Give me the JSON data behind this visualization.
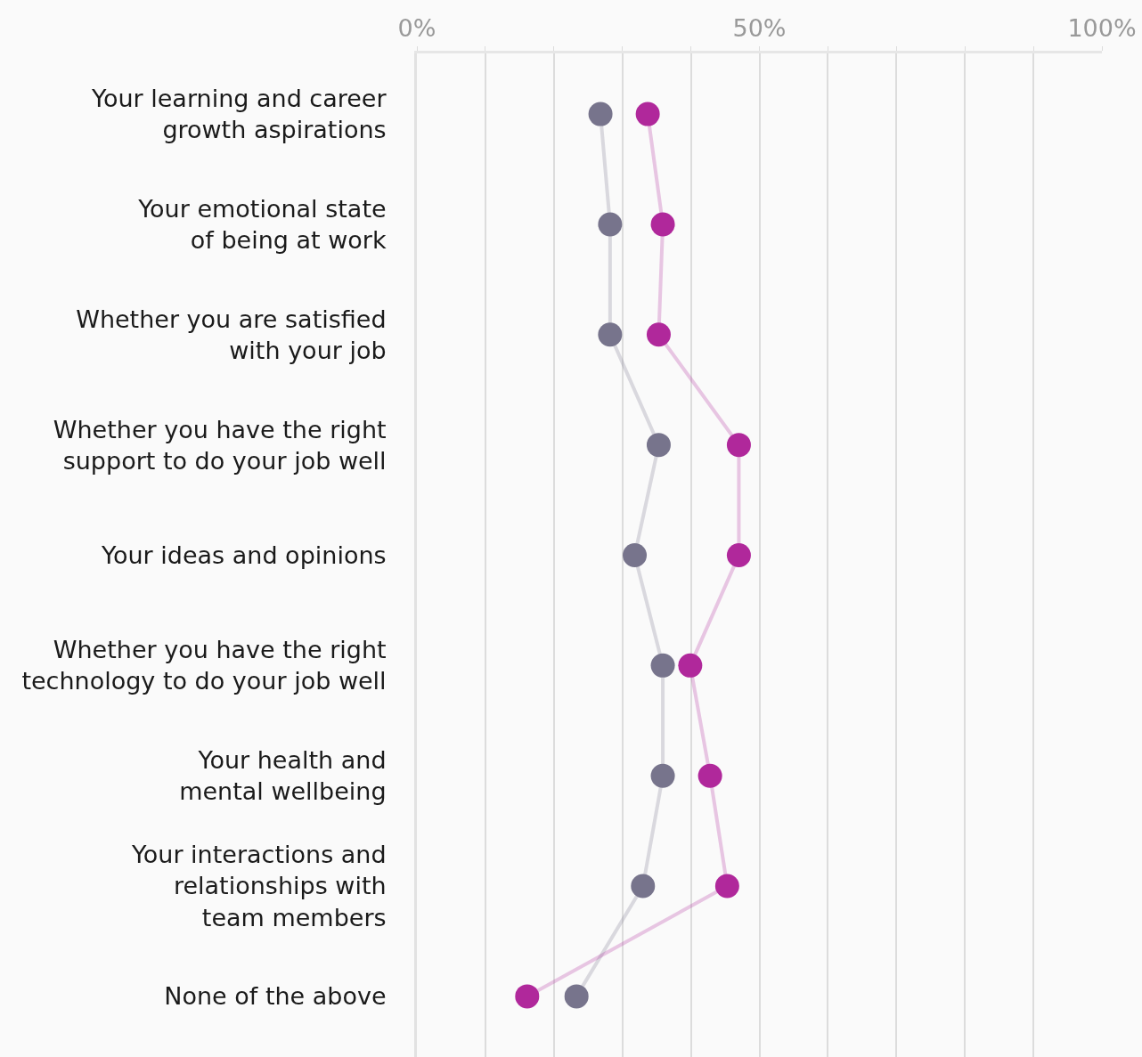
{
  "chart_data": {
    "type": "line",
    "orientation": "horizontal",
    "categories": [
      "Your learning and career\ngrowth aspirations",
      "Your emotional state\nof being at work",
      "Whether you are satisfied\nwith your job",
      "Whether you have the right\nsupport to do your job well",
      "Your ideas and opinions",
      "Whether you have the right\ntechnology to do your job well",
      "Your health and\nmental wellbeing",
      "Your interactions and\nrelationships with\nteam members",
      "None of the above"
    ],
    "series": [
      {
        "color": "#77748c",
        "values": [
          26.8,
          28.2,
          28.2,
          35.3,
          31.8,
          35.9,
          35.9,
          33.0,
          23.3
        ]
      },
      {
        "color": "#b0289b",
        "values": [
          33.7,
          35.9,
          35.3,
          47.0,
          47.0,
          39.9,
          42.8,
          45.3,
          16.1
        ]
      }
    ],
    "xlim": [
      0,
      100
    ],
    "xticks": [
      {
        "value": 0,
        "label": "0%"
      },
      {
        "value": 10,
        "label": null
      },
      {
        "value": 20,
        "label": null
      },
      {
        "value": 30,
        "label": null
      },
      {
        "value": 40,
        "label": null
      },
      {
        "value": 50,
        "label": "50%"
      },
      {
        "value": 60,
        "label": null
      },
      {
        "value": 70,
        "label": null
      },
      {
        "value": 80,
        "label": null
      },
      {
        "value": 90,
        "label": null
      },
      {
        "value": 100,
        "label": "100%"
      }
    ],
    "grid": "x",
    "marker": "circle",
    "line_style": "solid"
  }
}
